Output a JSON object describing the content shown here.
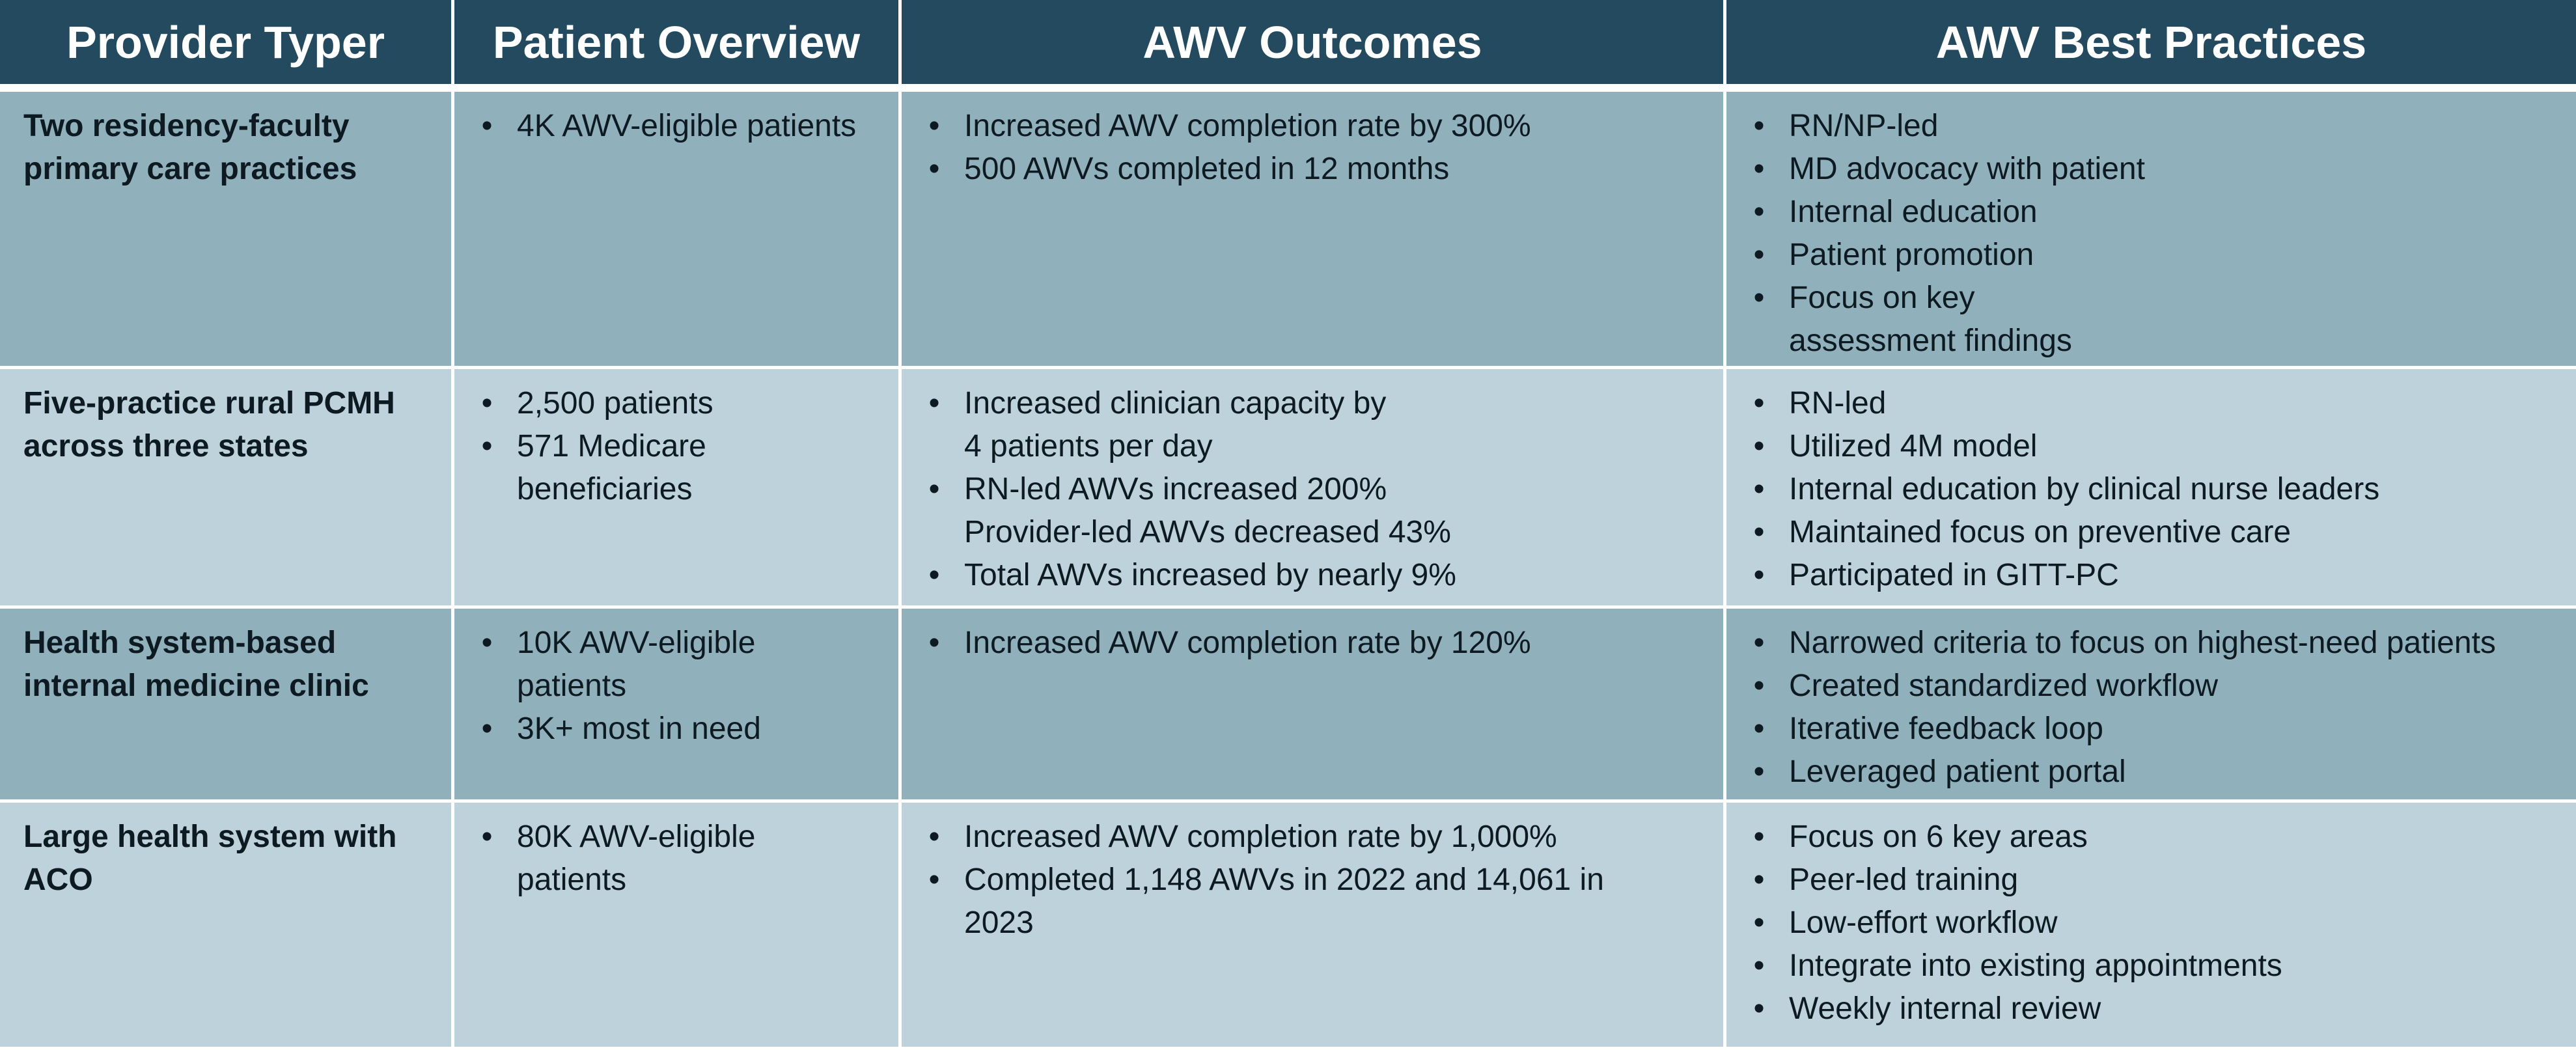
{
  "colors": {
    "header_bg": "#244a5f",
    "row_dark": "#90b0bc",
    "row_light": "#bdd2da",
    "text": "#0e1a22"
  },
  "header": {
    "col1": "Provider Typer",
    "col2": "Patient Overview",
    "col3": "AWV Outcomes",
    "col4": "AWV Best Practices"
  },
  "rows": [
    {
      "provider": [
        "Two residency-faculty",
        "primary care practices"
      ],
      "overview": [
        [
          "4K AWV-eligible patients"
        ]
      ],
      "outcomes": [
        [
          "Increased AWV completion rate by 300%"
        ],
        [
          "500 AWVs completed in 12 months"
        ]
      ],
      "practices": [
        [
          "RN/NP-led"
        ],
        [
          "MD advocacy with patient"
        ],
        [
          "Internal education"
        ],
        [
          "Patient promotion"
        ],
        [
          "Focus on key",
          "assessment findings"
        ]
      ]
    },
    {
      "provider": [
        "Five-practice rural PCMH",
        "across three states"
      ],
      "overview": [
        [
          "2,500 patients"
        ],
        [
          "571 Medicare",
          "beneficiaries"
        ]
      ],
      "outcomes": [
        [
          "Increased clinician capacity by",
          "4 patients per day"
        ],
        [
          "RN-led AWVs increased 200%",
          "Provider-led AWVs decreased 43%"
        ],
        [
          "Total AWVs increased by nearly 9%"
        ]
      ],
      "practices": [
        [
          "RN-led"
        ],
        [
          "Utilized 4M model"
        ],
        [
          "Internal education by clinical nurse leaders"
        ],
        [
          "Maintained focus on preventive care"
        ],
        [
          "Participated in GITT-PC"
        ]
      ]
    },
    {
      "provider": [
        "Health system-based",
        "internal medicine clinic"
      ],
      "overview": [
        [
          "10K AWV-eligible",
          "patients"
        ],
        [
          "3K+ most in need"
        ]
      ],
      "outcomes": [
        [
          "Increased AWV completion rate by 120%"
        ]
      ],
      "practices": [
        [
          "Narrowed criteria to focus on highest-need patients"
        ],
        [
          "Created standardized workflow"
        ],
        [
          "Iterative feedback loop"
        ],
        [
          "Leveraged patient portal"
        ]
      ]
    },
    {
      "provider": [
        "Large health system with",
        "ACO"
      ],
      "overview": [
        [
          "80K AWV-eligible",
          "patients"
        ]
      ],
      "outcomes": [
        [
          "Increased AWV completion rate by 1,000%"
        ],
        [
          "Completed 1,148 AWVs in 2022 and 14,061 in",
          "2023"
        ]
      ],
      "practices": [
        [
          "Focus on 6 key areas"
        ],
        [
          "Peer-led training"
        ],
        [
          "Low-effort workflow"
        ],
        [
          "Integrate into existing appointments"
        ],
        [
          "Weekly internal review"
        ]
      ]
    }
  ]
}
